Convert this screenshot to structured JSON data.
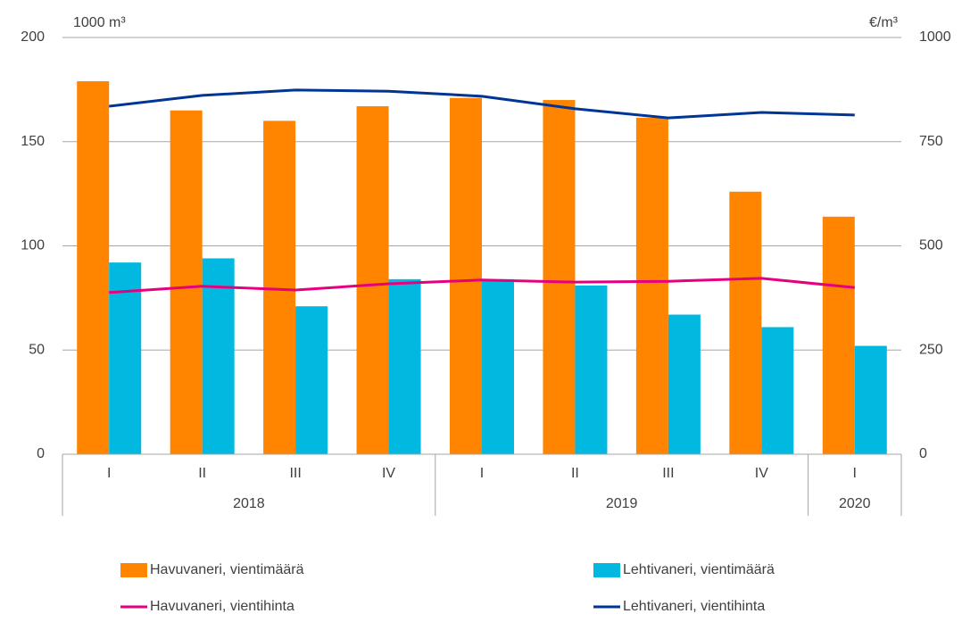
{
  "chart_data": {
    "type": "bar",
    "y_label": "1000 m³",
    "y2_label": "€/m³",
    "categories": [
      "I",
      "II",
      "III",
      "IV",
      "I",
      "II",
      "III",
      "IV",
      "I"
    ],
    "years": [
      "2018",
      "2018",
      "2018",
      "2018",
      "2019",
      "2019",
      "2019",
      "2019",
      "2020"
    ],
    "ylim": [
      0,
      200
    ],
    "yticks": [
      0,
      50,
      100,
      150,
      200
    ],
    "y2lim": [
      0,
      1000
    ],
    "y2ticks": [
      0,
      250,
      500,
      750,
      1000
    ],
    "grid": true,
    "series": [
      {
        "name": "Havuvaneri, vientimäärä",
        "type": "bar",
        "color": "#ff8400",
        "values": [
          179,
          165,
          160,
          167,
          171,
          170,
          161.5,
          126,
          114
        ]
      },
      {
        "name": "Lehtivaneri, vientimäärä",
        "type": "bar",
        "color": "#00b8e0",
        "values": [
          92,
          94,
          71,
          84,
          84,
          81,
          67,
          61,
          52
        ]
      },
      {
        "name": "Havuvaneri, vientihinta",
        "type": "line",
        "axis": "y2",
        "color": "#e6007e",
        "values": [
          388,
          403,
          394,
          409,
          418,
          413,
          415,
          422,
          400
        ]
      },
      {
        "name": "Lehtivaneri, vientihinta",
        "type": "line",
        "axis": "y2",
        "color": "#003594",
        "values": [
          835,
          861,
          874,
          871,
          859,
          829,
          807,
          820,
          814
        ]
      }
    ]
  }
}
